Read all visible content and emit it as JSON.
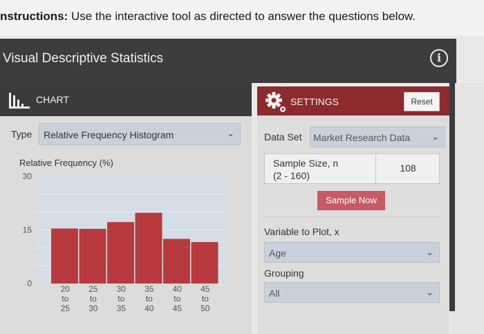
{
  "instructions": {
    "prefix": "nstructions:",
    "text": " Use the interactive tool as directed to answer the questions below."
  },
  "app": {
    "title": "Visual Descriptive Statistics",
    "info_icon": "info-circle-icon"
  },
  "chart_panel": {
    "header": "CHART",
    "header_icon": "bar-chart-icon",
    "type_label": "Type",
    "type_value": "Relative Frequency Histogram"
  },
  "settings_panel": {
    "header": "SETTINGS",
    "header_icon": "gear-icon",
    "reset_label": "Reset",
    "dataset_label": "Data Set",
    "dataset_value": "Market Research Data",
    "sample_size_label_1": "Sample Size, n",
    "sample_size_label_2": "(2 - 160)",
    "sample_size_value": "108",
    "sample_now_label": "Sample Now",
    "variable_label": "Variable to Plot, x",
    "variable_value": "Age",
    "grouping_label": "Grouping",
    "grouping_value": "All"
  },
  "chart_data": {
    "type": "bar",
    "ylabel": "Relative Frequency (%)",
    "ylim": [
      0,
      30
    ],
    "yticks": [
      "30",
      "15",
      "0"
    ],
    "categories": [
      {
        "from": "20",
        "to_word": "to",
        "to": "25"
      },
      {
        "from": "25",
        "to_word": "to",
        "to": "30"
      },
      {
        "from": "30",
        "to_word": "to",
        "to": "35"
      },
      {
        "from": "35",
        "to_word": "to",
        "to": "40"
      },
      {
        "from": "40",
        "to_word": "to",
        "to": "45"
      },
      {
        "from": "45",
        "to_word": "to",
        "to": "50"
      }
    ],
    "values": [
      15.4,
      15.3,
      17.2,
      19.8,
      12.5,
      11.6
    ],
    "bar_color": "#b83a3e",
    "plot_background": "#d5dde6",
    "gridlines": true
  }
}
